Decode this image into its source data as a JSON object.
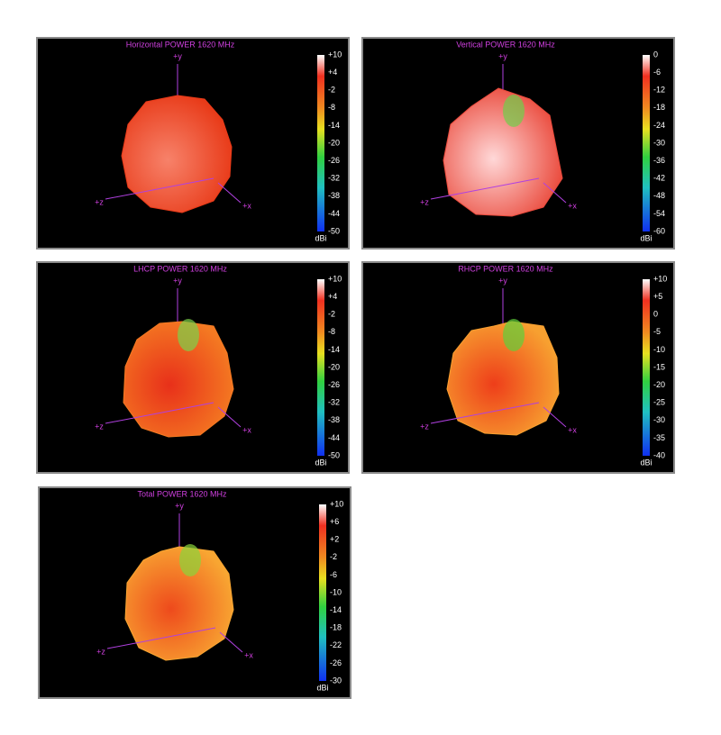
{
  "panels": [
    {
      "title": "Horizontal POWER 1620  MHz",
      "axes": [
        "+y",
        "+z",
        "+x"
      ],
      "scale": [
        "+10",
        "+4",
        "-2",
        "-8",
        "-14",
        "-20",
        "-26",
        "-32",
        "-38",
        "-44",
        "-50"
      ],
      "unit": "dBi"
    },
    {
      "title": "Vertical POWER 1620  MHz",
      "axes": [
        "+y",
        "+z",
        "+x"
      ],
      "scale": [
        "0",
        "-6",
        "-12",
        "-18",
        "-24",
        "-30",
        "-36",
        "-42",
        "-48",
        "-54",
        "-60"
      ],
      "unit": "dBi"
    },
    {
      "title": "LHCP POWER 1620  MHz",
      "axes": [
        "+y",
        "+z",
        "+x"
      ],
      "scale": [
        "+10",
        "+4",
        "-2",
        "-8",
        "-14",
        "-20",
        "-26",
        "-32",
        "-38",
        "-44",
        "-50"
      ],
      "unit": "dBi"
    },
    {
      "title": "RHCP POWER 1620  MHz",
      "axes": [
        "+y",
        "+z",
        "+x"
      ],
      "scale": [
        "+10",
        "+5",
        "0",
        "-5",
        "-10",
        "-15",
        "-20",
        "-25",
        "-30",
        "-35",
        "-40"
      ],
      "unit": "dBi"
    },
    {
      "title": "Total POWER 1620  MHz",
      "axes": [
        "+y",
        "+z",
        "+x"
      ],
      "scale": [
        "+10",
        "+6",
        "+2",
        "-2",
        "-6",
        "-10",
        "-14",
        "-18",
        "-22",
        "-26",
        "-30"
      ],
      "unit": "dBi"
    }
  ]
}
